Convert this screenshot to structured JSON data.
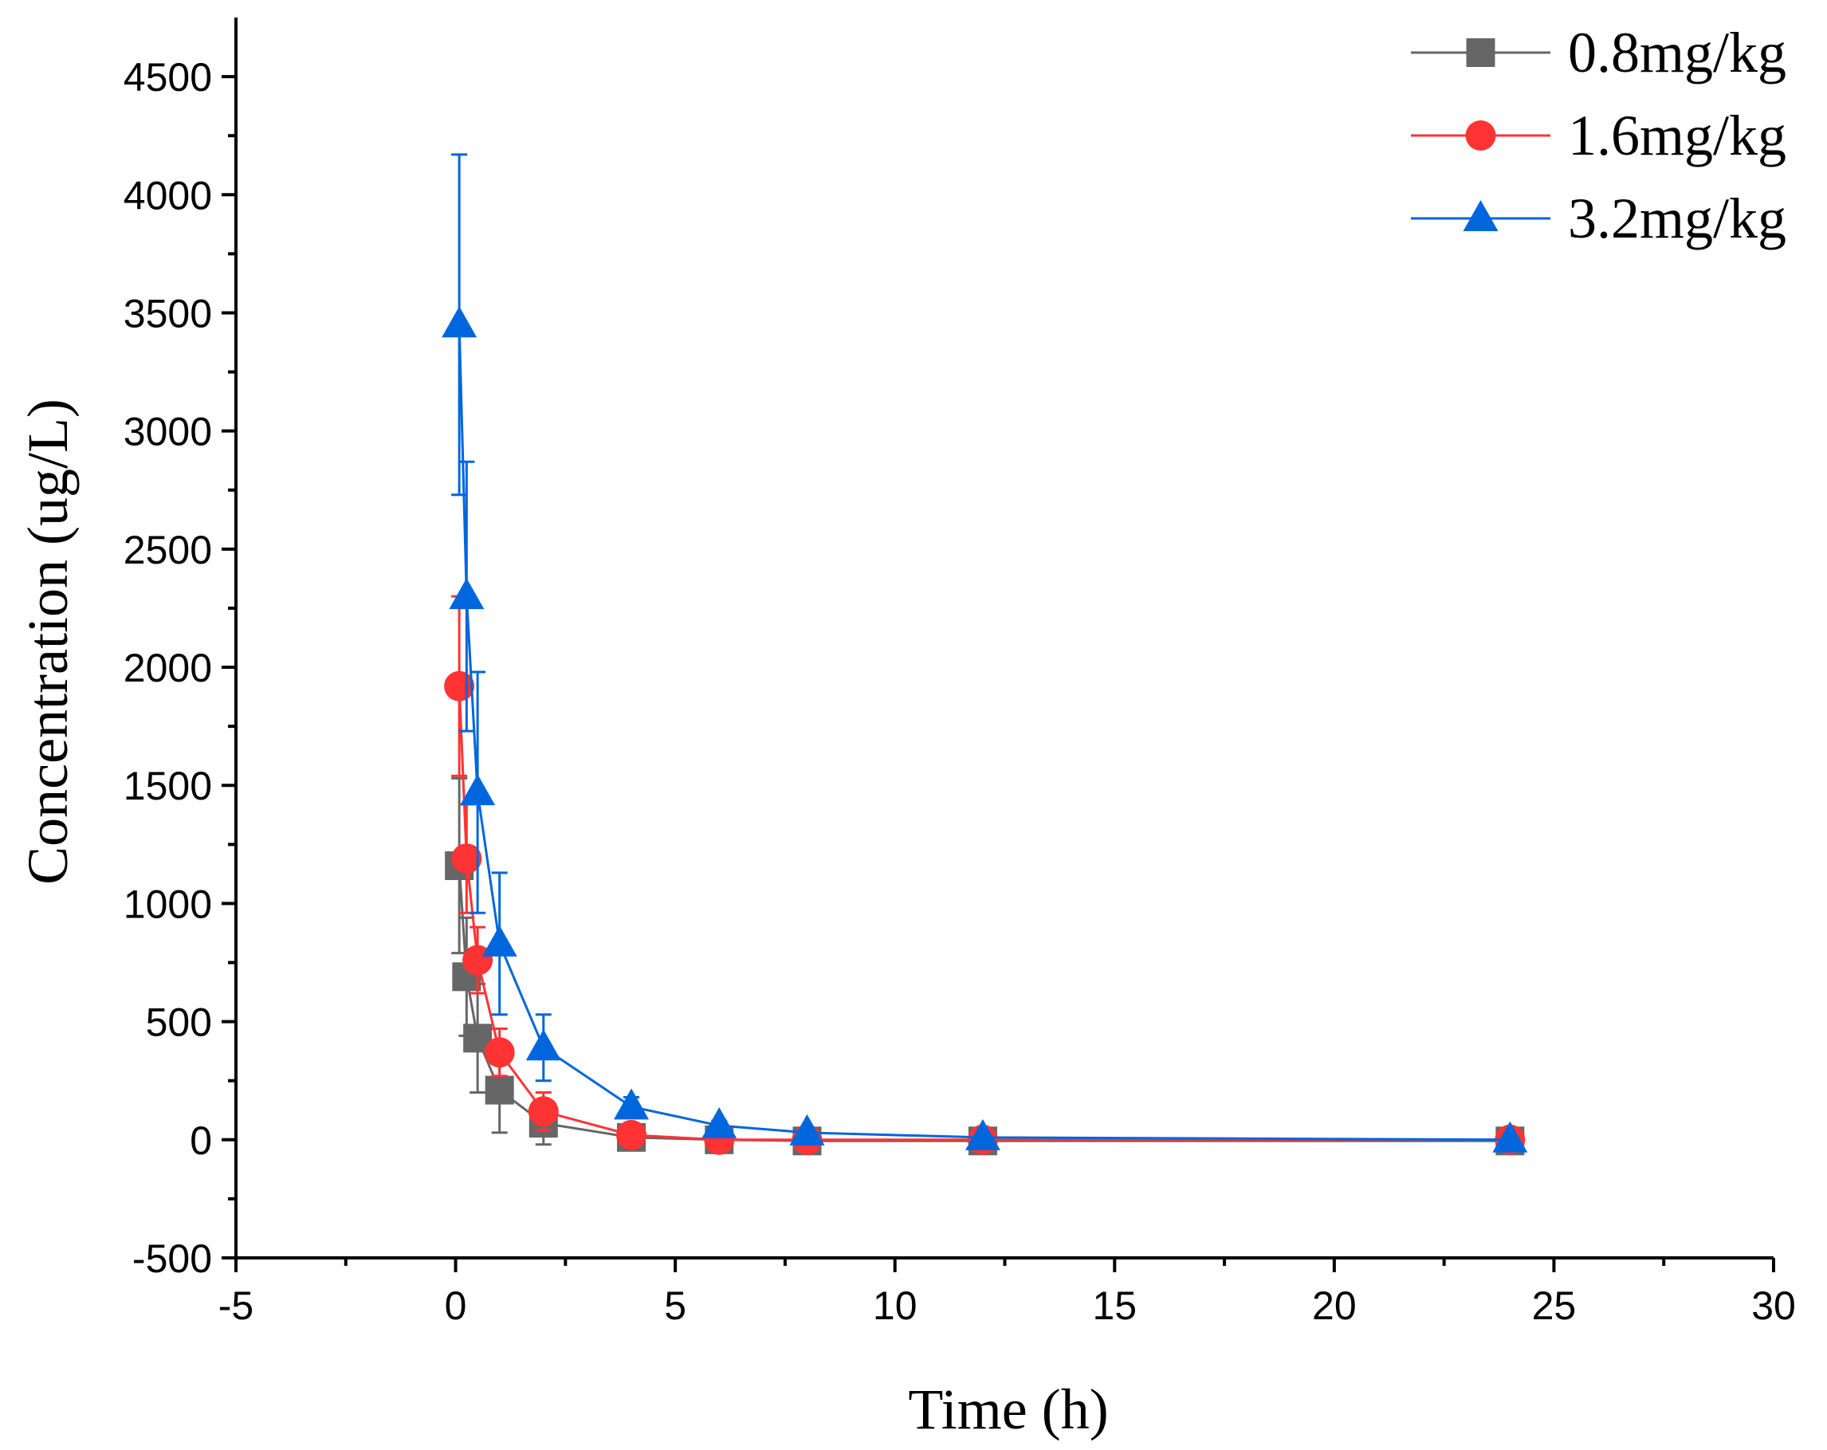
{
  "chart_data": {
    "type": "line",
    "title": "",
    "xlabel": "Time (h)",
    "ylabel": "Concentration (ug/L)",
    "xlim": [
      -5,
      30
    ],
    "ylim": [
      -500,
      4750
    ],
    "xticks": [
      -5,
      0,
      5,
      10,
      15,
      20,
      25,
      30
    ],
    "yticks": [
      -500,
      0,
      500,
      1000,
      1500,
      2000,
      2500,
      3000,
      3500,
      4000,
      4500
    ],
    "xtick_labels": [
      "-5",
      "0",
      "5",
      "10",
      "15",
      "20",
      "25",
      "30"
    ],
    "ytick_labels": [
      "-500",
      "0",
      "500",
      "1000",
      "1500",
      "2000",
      "2500",
      "3000",
      "3500",
      "4000",
      "4500"
    ],
    "legend_position": "top-right",
    "grid": false,
    "x": [
      0.083,
      0.25,
      0.5,
      1,
      2,
      4,
      6,
      8,
      12,
      24
    ],
    "series": [
      {
        "name": "0.8mg/kg",
        "color": "#666666",
        "marker": "square",
        "values": [
          1160,
          690,
          430,
          210,
          70,
          10,
          0,
          -5,
          -5,
          -5
        ],
        "errors": [
          370,
          250,
          230,
          180,
          90,
          20,
          10,
          10,
          5,
          5
        ]
      },
      {
        "name": "1.6mg/kg",
        "color": "#ff3333",
        "marker": "circle",
        "values": [
          1920,
          1190,
          760,
          370,
          120,
          20,
          0,
          0,
          0,
          0
        ],
        "errors": [
          380,
          230,
          140,
          100,
          80,
          40,
          20,
          10,
          10,
          5
        ]
      },
      {
        "name": "3.2mg/kg",
        "color": "#0066dd",
        "marker": "triangle",
        "values": [
          3450,
          2300,
          1470,
          830,
          390,
          140,
          60,
          30,
          10,
          0
        ],
        "errors": [
          720,
          570,
          510,
          300,
          140,
          40,
          20,
          10,
          10,
          5
        ]
      }
    ]
  }
}
